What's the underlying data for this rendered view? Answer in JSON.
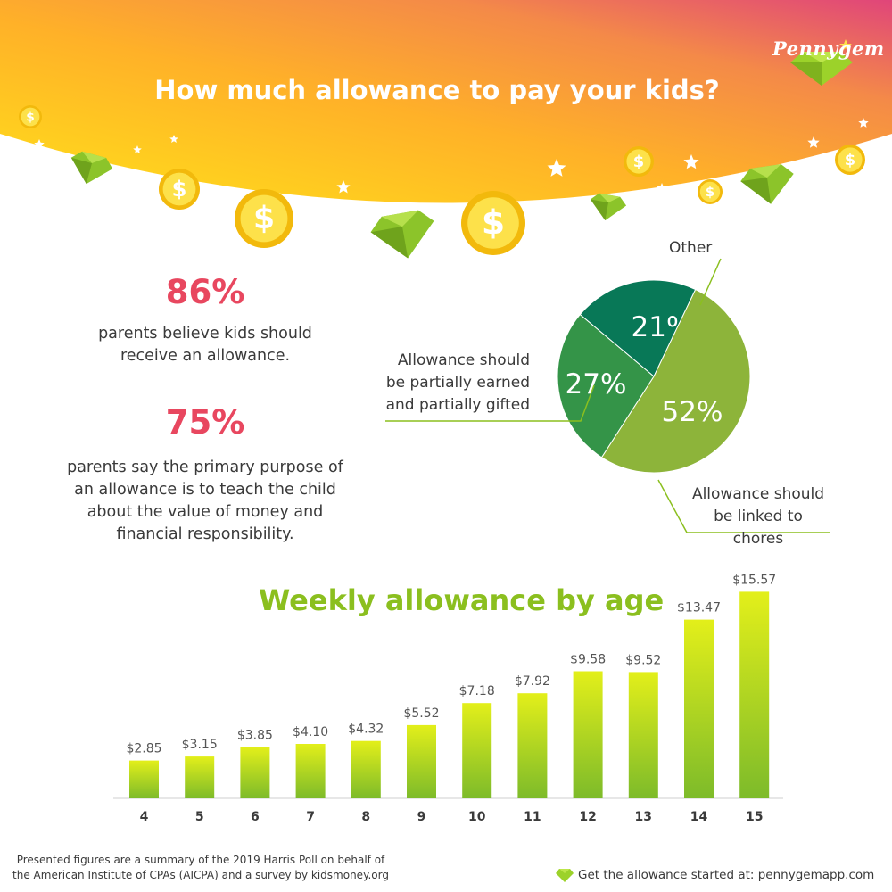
{
  "brand": {
    "name": "Pennygem"
  },
  "header": {
    "title": "How much allowance to pay your kids?"
  },
  "stats": [
    {
      "value": "86%",
      "text_lines": [
        "parents believe kids should",
        "receive an allowance."
      ]
    },
    {
      "value": "75%",
      "text_lines": [
        "parents say the primary purpose of",
        "an allowance is to teach the child",
        "about the value of money and",
        "financial responsibility."
      ]
    }
  ],
  "pie": {
    "slices": [
      {
        "label": "Other",
        "percent": 21,
        "percent_label": "21%",
        "color": "#087857"
      },
      {
        "label": "Allowance should be linked to chores",
        "percent": 52,
        "percent_label": "52%",
        "color": "#8db43a"
      },
      {
        "label": "Allowance should be partially earned and partially gifted",
        "percent": 27,
        "percent_label": "27%",
        "color": "#349448"
      }
    ],
    "labels": {
      "other": [
        "Other"
      ],
      "gifted": [
        "Allowance should",
        "be partially earned",
        "and partially gifted"
      ],
      "chores": [
        "Allowance should",
        "be linked to chores"
      ]
    },
    "leader_color": "#8bbf1f"
  },
  "chart_data": {
    "type": "bar",
    "title": "Weekly allowance by age",
    "categories": [
      "4",
      "5",
      "6",
      "7",
      "8",
      "9",
      "10",
      "11",
      "12",
      "13",
      "14",
      "15"
    ],
    "values": [
      2.85,
      3.15,
      3.85,
      4.1,
      4.32,
      5.52,
      7.18,
      7.92,
      9.58,
      9.52,
      13.47,
      15.57
    ],
    "value_labels": [
      "$2.85",
      "$3.15",
      "$3.85",
      "$4.10",
      "$4.32",
      "$5.52",
      "$7.18",
      "$7.92",
      "$9.58",
      "$9.52",
      "$13.47",
      "$15.57"
    ],
    "xlabel": "",
    "ylabel": "",
    "ylim": [
      0,
      16
    ],
    "grid": false,
    "colors": {
      "bar_top": "#e3ef1a",
      "bar_bottom": "#7dbb2a"
    }
  },
  "footer": {
    "note_lines": [
      "Presented figures are a summary of the 2019 Harris Poll on behalf of",
      "the American Institute of CPAs (AICPA) and a survey by kidsmoney.org"
    ],
    "cta": "Get the allowance started at: pennygemapp.com"
  },
  "colors": {
    "header_gradient": [
      "#ffd61a",
      "#ffa92a",
      "#f07a4f",
      "#e0457a"
    ],
    "stat_accent": "#e8475f",
    "title_green": "#8bbf1f",
    "coin": "#f5c518",
    "gem": "#9cd22a"
  }
}
